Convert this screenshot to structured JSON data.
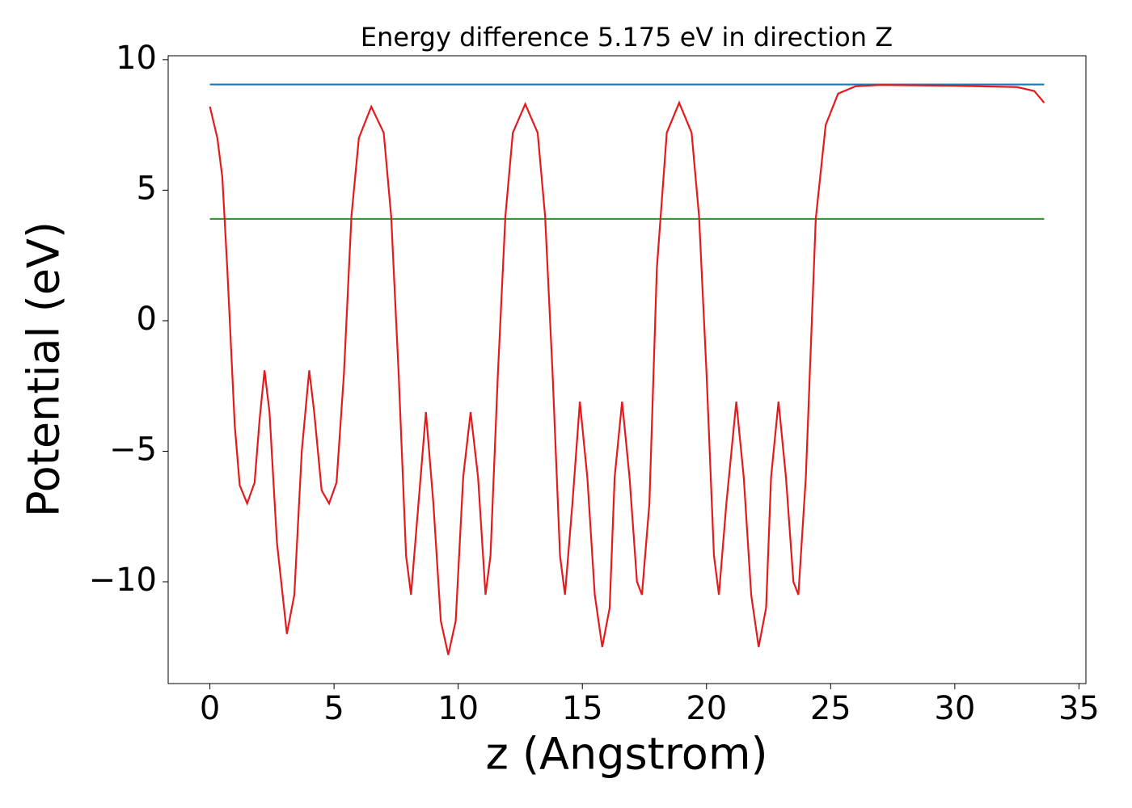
{
  "chart_data": {
    "type": "line",
    "title": "Energy difference 5.175 eV in direction Z",
    "x_label": "z (Angstrom)",
    "y_label": "Potential (eV)",
    "xlim": [
      -1.68,
      35.28
    ],
    "ylim": [
      -13.9,
      10.15
    ],
    "xticks": [
      0,
      5,
      10,
      15,
      20,
      25,
      30,
      35
    ],
    "yticks": [
      {
        "value": -10,
        "label": "−10"
      },
      {
        "value": -5,
        "label": "−5"
      },
      0,
      5,
      10
    ],
    "series": [
      {
        "color": "#1f77b4",
        "x": [
          0,
          33.6
        ],
        "values": [
          9.05,
          9.05
        ]
      },
      {
        "color": "#2ca02c",
        "x": [
          0,
          33.6
        ],
        "values": [
          3.9,
          3.9
        ]
      },
      {
        "color": "#e41a1c",
        "x": [
          0,
          0.3,
          0.5,
          0.7,
          1.0,
          1.2,
          1.5,
          1.8,
          2.0,
          2.2,
          2.4,
          2.7,
          3.1,
          3.4,
          3.7,
          4.0,
          4.2,
          4.5,
          4.8,
          5.1,
          5.4,
          5.7,
          6.0,
          6.5,
          7.0,
          7.3,
          7.6,
          7.9,
          8.1,
          8.4,
          8.7,
          9.0,
          9.3,
          9.6,
          9.9,
          10.2,
          10.5,
          10.8,
          11.1,
          11.3,
          11.6,
          11.9,
          12.2,
          12.7,
          13.2,
          13.5,
          13.8,
          14.1,
          14.3,
          14.6,
          14.9,
          15.2,
          15.5,
          15.8,
          16.1,
          16.3,
          16.6,
          16.9,
          17.2,
          17.4,
          17.7,
          18.0,
          18.4,
          18.9,
          19.4,
          19.7,
          20.0,
          20.3,
          20.5,
          20.8,
          21.2,
          21.5,
          21.8,
          22.1,
          22.4,
          22.6,
          22.9,
          23.2,
          23.5,
          23.7,
          24.0,
          24.4,
          24.8,
          25.3,
          26.0,
          27.0,
          30.0,
          32.5,
          33.2,
          33.6
        ],
        "values": [
          8.2,
          7.0,
          5.5,
          2,
          -4,
          -6.3,
          -7.0,
          -6.2,
          -3.8,
          -1.9,
          -3.5,
          -8.5,
          -12.0,
          -10.5,
          -5,
          -1.9,
          -3.5,
          -6.5,
          -7.0,
          -6.2,
          -2,
          4,
          7.0,
          8.2,
          7.2,
          4,
          -2,
          -9,
          -10.5,
          -7,
          -3.5,
          -7,
          -11.5,
          -12.8,
          -11.5,
          -6,
          -3.5,
          -6,
          -10.5,
          -9,
          -2,
          4,
          7.2,
          8.3,
          7.2,
          4,
          -2,
          -9,
          -10.5,
          -7,
          -3.1,
          -6,
          -10.5,
          -12.5,
          -11,
          -6,
          -3.1,
          -6,
          -10,
          -10.5,
          -7,
          2,
          7.2,
          8.35,
          7.2,
          4,
          -2,
          -9,
          -10.5,
          -7,
          -3.1,
          -6,
          -10.5,
          -12.5,
          -11,
          -6,
          -3.1,
          -6,
          -10,
          -10.5,
          -6,
          3.9,
          7.5,
          8.7,
          8.98,
          9.03,
          9.0,
          8.95,
          8.8,
          8.35
        ]
      }
    ]
  }
}
